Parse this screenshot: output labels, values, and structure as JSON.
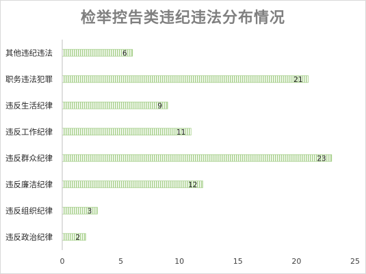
{
  "chart_data": {
    "type": "bar",
    "orientation": "horizontal",
    "title": "检举控告类违纪违法分布情况",
    "categories": [
      "其他违纪违法",
      "职务违法犯罪",
      "违反生活纪律",
      "违反工作纪律",
      "违反群众纪律",
      "违反廉洁纪律",
      "违反组织纪律",
      "违反政治纪律"
    ],
    "values": [
      6,
      21,
      9,
      11,
      23,
      12,
      3,
      2
    ],
    "xlim": [
      0,
      25
    ],
    "xticks": [
      0,
      5,
      10,
      15,
      20,
      25
    ],
    "xlabel": "",
    "ylabel": "",
    "grid": false,
    "data_labels": true,
    "bar_fill": "#ffffff",
    "bar_stripe": "#a9d18e",
    "bar_border": "#a9d18e"
  }
}
